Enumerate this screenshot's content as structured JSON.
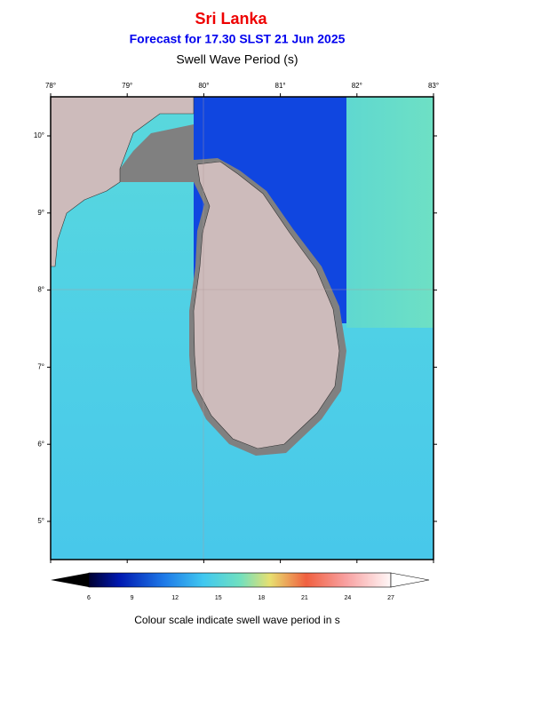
{
  "header": {
    "title": "Sri Lanka",
    "subtitle": "Forecast for  17.30 SLST 21 Jun 2025",
    "variable": "Swell Wave Period (s)"
  },
  "map": {
    "longitude_labels": [
      "78°",
      "79°",
      "80°",
      "81°",
      "82°",
      "83°"
    ],
    "latitude_labels": [
      "10°",
      "9°",
      "8°",
      "7°",
      "6°",
      "5°"
    ]
  },
  "colorbar": {
    "tick_labels": [
      "6",
      "9",
      "12",
      "15",
      "18",
      "21",
      "24",
      "27"
    ],
    "caption": "Colour scale indicate swell wave period in s"
  }
}
